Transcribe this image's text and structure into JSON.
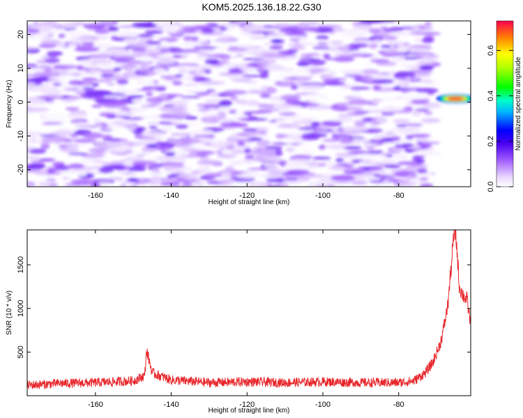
{
  "title": "KOM5.2025.136.18.22.G30",
  "chart_data": [
    {
      "type": "heatmap",
      "title": "KOM5.2025.136.18.22.G30",
      "xlabel": "Height of straight line (km)",
      "ylabel": "Frequency (Hz)",
      "xlim": [
        -178,
        -61
      ],
      "ylim": [
        -25,
        24
      ],
      "xticks": [
        -160,
        -140,
        -120,
        -100,
        -80
      ],
      "yticks": [
        -20,
        -10,
        0,
        10,
        20
      ],
      "grid": false,
      "colorbar": {
        "label": "Normalized spectral amplitude",
        "range": [
          0,
          0.73
        ],
        "ticks": [
          "0.0",
          "0.2",
          "0.4",
          "0.6"
        ]
      },
      "hotspots": [
        {
          "x": -65,
          "y": 1,
          "value": 0.7
        },
        {
          "x": -112,
          "y": 18,
          "value": 0.25
        },
        {
          "x": -145,
          "y": -13,
          "value": 0.22
        },
        {
          "x": -150,
          "y": -23,
          "value": 0.2
        }
      ],
      "background_level": [
        0,
        0.12
      ]
    },
    {
      "type": "line",
      "xlabel": "Height of straight line (km)",
      "ylabel": "SNR (10 * v/v)",
      "xlim": [
        -178,
        -61
      ],
      "ylim": [
        0,
        1900
      ],
      "xticks": [
        -160,
        -140,
        -120,
        -100,
        -80
      ],
      "yticks": [
        500,
        1000,
        1500
      ],
      "grid": false,
      "color": "#e8262b",
      "x": [
        -178,
        -170,
        -160,
        -150,
        -147,
        -146.5,
        -145,
        -140,
        -130,
        -120,
        -110,
        -100,
        -90,
        -80,
        -76,
        -73,
        -71,
        -69,
        -68,
        -67,
        -66,
        -65.5,
        -65,
        -64.5,
        -64,
        -63,
        -62,
        -61
      ],
      "y": [
        120,
        140,
        150,
        170,
        230,
        520,
        260,
        180,
        150,
        160,
        150,
        160,
        150,
        150,
        170,
        260,
        380,
        600,
        800,
        1050,
        1550,
        1820,
        1880,
        1600,
        1250,
        1150,
        1100,
        820
      ],
      "noise_amplitude": 80
    }
  ]
}
